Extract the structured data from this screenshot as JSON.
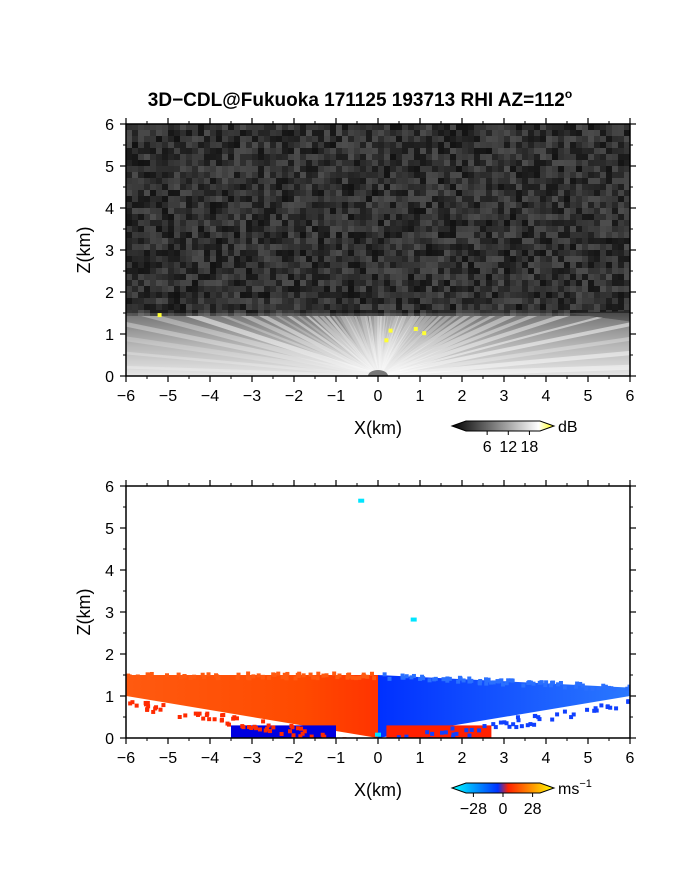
{
  "title": "3D−CDL@Fukuoka 171125 193713 RHI AZ=112",
  "title_superscript": "o",
  "chart_data": [
    {
      "type": "heatmap",
      "field": "reflectivity",
      "xlabel": "X(km)",
      "ylabel": "Z(km)",
      "xlim": [
        -6,
        6
      ],
      "ylim": [
        0,
        6
      ],
      "xticks": [
        -6,
        -5,
        -4,
        -3,
        -2,
        -1,
        0,
        1,
        2,
        3,
        4,
        5,
        6
      ],
      "yticks": [
        0,
        1,
        2,
        3,
        4,
        5,
        6
      ],
      "colorbar": {
        "unit": "dB",
        "ticks": [
          6,
          12,
          18
        ],
        "range": [
          0,
          21
        ],
        "colors": [
          "#000000",
          "#ffffff",
          "#ffff00"
        ]
      },
      "background_noise": true,
      "echo_top_km": 1.5,
      "echo_top_edge_km": 1.3,
      "clutter_points": [
        {
          "x": -5.2,
          "z": 1.45
        },
        {
          "x": 0.3,
          "z": 1.08
        },
        {
          "x": 0.2,
          "z": 0.85
        },
        {
          "x": 1.1,
          "z": 1.02
        },
        {
          "x": 0.9,
          "z": 1.12
        }
      ]
    },
    {
      "type": "heatmap",
      "field": "doppler_velocity",
      "xlabel": "X(km)",
      "ylabel": "Z(km)",
      "xlim": [
        -6,
        6
      ],
      "ylim": [
        0,
        6
      ],
      "xticks": [
        -6,
        -5,
        -4,
        -3,
        -2,
        -1,
        0,
        1,
        2,
        3,
        4,
        5,
        6
      ],
      "yticks": [
        0,
        1,
        2,
        3,
        4,
        5,
        6
      ],
      "colorbar": {
        "unit": "ms",
        "unit_superscript": "−1",
        "ticks": [
          -28,
          0,
          28
        ],
        "tick_labels": [
          "−28",
          "0",
          "28"
        ],
        "range": [
          -35,
          35
        ],
        "colors": [
          "#00ffff",
          "#0033ff",
          "#ff2200",
          "#ffff00"
        ]
      },
      "regions": [
        {
          "name": "receding",
          "x": [
            -6,
            0
          ],
          "z_top": [
            1.5,
            1.5
          ],
          "z_bottom": [
            1.0,
            0.0
          ],
          "color": "#ff4400"
        },
        {
          "name": "approaching",
          "x": [
            0,
            6
          ],
          "z_top": [
            1.5,
            1.2
          ],
          "z_bottom": [
            0.0,
            1.0
          ],
          "color": "#1a5cff"
        }
      ],
      "near_ground_patches": [
        {
          "x": [
            -3.5,
            -1.0
          ],
          "z": [
            0.0,
            0.3
          ],
          "color": "#0000e0"
        },
        {
          "x": [
            0.2,
            2.7
          ],
          "z": [
            0.0,
            0.3
          ],
          "color": "#ff2000"
        }
      ],
      "isolated_points": [
        {
          "x": -0.4,
          "z": 5.65,
          "color": "#00e5ff"
        },
        {
          "x": 0.85,
          "z": 2.82,
          "color": "#00e5ff"
        },
        {
          "x": 0.0,
          "z": 0.08,
          "color": "#00e5ff"
        }
      ]
    }
  ]
}
